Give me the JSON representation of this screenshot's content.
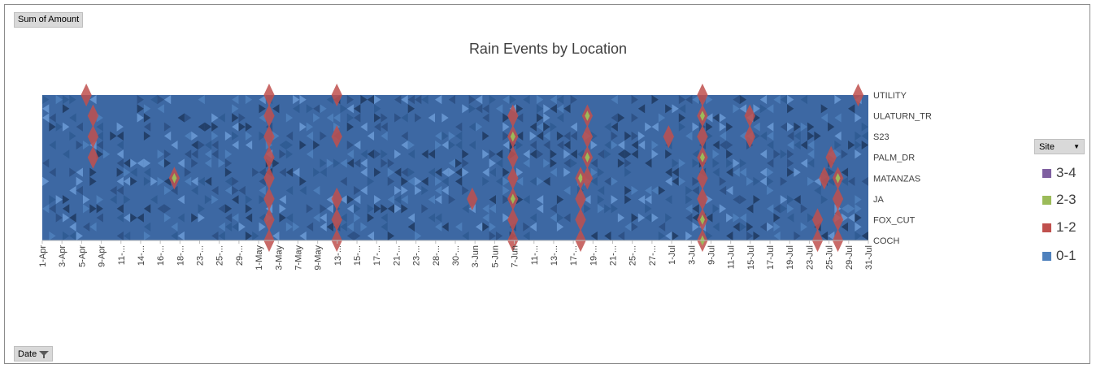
{
  "sum_label": "Sum of Amount",
  "date_label": "Date",
  "legend_field": "Site",
  "chart_data": {
    "type": "heatmap",
    "title": "Rain Events by Location",
    "sites": [
      "UTILITY",
      "ULATURN_TR",
      "S23",
      "PALM_DR",
      "MATANZAS",
      "JA",
      "FOX_CUT",
      "COCH"
    ],
    "x_tick_labels": [
      "1-Apr",
      "3-Apr",
      "5-Apr",
      "9-Apr",
      "11-...",
      "14-...",
      "16-...",
      "18-...",
      "23-...",
      "25-...",
      "29-...",
      "1-May",
      "3-May",
      "7-May",
      "9-May",
      "13-...",
      "15-...",
      "17-...",
      "21-...",
      "23-...",
      "28-...",
      "30-...",
      "3-Jun",
      "5-Jun",
      "7-Jun",
      "11-...",
      "13-...",
      "17-...",
      "19-...",
      "21-...",
      "25-...",
      "27-...",
      "1-Jul",
      "3-Jul",
      "9-Jul",
      "11-Jul",
      "15-Jul",
      "17-Jul",
      "19-Jul",
      "23-Jul",
      "25-Jul",
      "29-Jul",
      "31-Jul"
    ],
    "legend": [
      {
        "label": "3-4",
        "color": "#7f5fa0"
      },
      {
        "label": "2-3",
        "color": "#9bbb59"
      },
      {
        "label": "1-2",
        "color": "#c0504d"
      },
      {
        "label": "0-1",
        "color": "#4f81bd"
      }
    ],
    "legend_position": "right",
    "events": [
      {
        "date": "7-Apr",
        "site": "UTILITY",
        "value": 1.3
      },
      {
        "date": "8-Apr",
        "site": "ULATURN_TR",
        "value": 1.1
      },
      {
        "date": "8-Apr",
        "site": "PALM_DR",
        "value": 1.5
      },
      {
        "date": "8-Apr",
        "site": "S23",
        "value": 1.2
      },
      {
        "date": "20-Apr",
        "site": "MATANZAS",
        "value": 2.2
      },
      {
        "date": "4-May",
        "site": "UTILITY",
        "value": 1.4
      },
      {
        "date": "4-May",
        "site": "ULATURN_TR",
        "value": 1.6
      },
      {
        "date": "4-May",
        "site": "S23",
        "value": 1.5
      },
      {
        "date": "4-May",
        "site": "PALM_DR",
        "value": 1.3
      },
      {
        "date": "4-May",
        "site": "MATANZAS",
        "value": 1.7
      },
      {
        "date": "4-May",
        "site": "JA",
        "value": 1.6
      },
      {
        "date": "4-May",
        "site": "FOX_CUT",
        "value": 1.4
      },
      {
        "date": "4-May",
        "site": "COCH",
        "value": 1.2
      },
      {
        "date": "14-May",
        "site": "UTILITY",
        "value": 1.3
      },
      {
        "date": "14-May",
        "site": "S23",
        "value": 1.1
      },
      {
        "date": "14-May",
        "site": "JA",
        "value": 1.2
      },
      {
        "date": "14-May",
        "site": "FOX_CUT",
        "value": 1.5
      },
      {
        "date": "14-May",
        "site": "COCH",
        "value": 1.3
      },
      {
        "date": "3-Jun",
        "site": "JA",
        "value": 1.1
      },
      {
        "date": "9-Jun",
        "site": "ULATURN_TR",
        "value": 1.8
      },
      {
        "date": "9-Jun",
        "site": "S23",
        "value": 2.3
      },
      {
        "date": "9-Jun",
        "site": "PALM_DR",
        "value": 1.9
      },
      {
        "date": "9-Jun",
        "site": "MATANZAS",
        "value": 1.6
      },
      {
        "date": "9-Jun",
        "site": "JA",
        "value": 2.4
      },
      {
        "date": "9-Jun",
        "site": "FOX_CUT",
        "value": 1.8
      },
      {
        "date": "9-Jun",
        "site": "COCH",
        "value": 1.5
      },
      {
        "date": "19-Jun",
        "site": "MATANZAS",
        "value": 2.5
      },
      {
        "date": "19-Jun",
        "site": "JA",
        "value": 1.6
      },
      {
        "date": "19-Jun",
        "site": "FOX_CUT",
        "value": 1.3
      },
      {
        "date": "19-Jun",
        "site": "COCH",
        "value": 1.2
      },
      {
        "date": "20-Jun",
        "site": "ULATURN_TR",
        "value": 2.3
      },
      {
        "date": "20-Jun",
        "site": "S23",
        "value": 1.8
      },
      {
        "date": "20-Jun",
        "site": "PALM_DR",
        "value": 2.1
      },
      {
        "date": "20-Jun",
        "site": "MATANZAS",
        "value": 1.9
      },
      {
        "date": "2-Jul",
        "site": "S23",
        "value": 1.2
      },
      {
        "date": "7-Jul",
        "site": "UTILITY",
        "value": 1.5
      },
      {
        "date": "7-Jul",
        "site": "ULATURN_TR",
        "value": 2.2
      },
      {
        "date": "7-Jul",
        "site": "S23",
        "value": 1.6
      },
      {
        "date": "7-Jul",
        "site": "PALM_DR",
        "value": 2.4
      },
      {
        "date": "7-Jul",
        "site": "MATANZAS",
        "value": 1.3
      },
      {
        "date": "7-Jul",
        "site": "JA",
        "value": 1.7
      },
      {
        "date": "7-Jul",
        "site": "FOX_CUT",
        "value": 2.1
      },
      {
        "date": "7-Jul",
        "site": "COCH",
        "value": 2.6
      },
      {
        "date": "14-Jul",
        "site": "ULATURN_TR",
        "value": 1.2
      },
      {
        "date": "14-Jul",
        "site": "S23",
        "value": 1.1
      },
      {
        "date": "24-Jul",
        "site": "FOX_CUT",
        "value": 1.4
      },
      {
        "date": "24-Jul",
        "site": "COCH",
        "value": 1.3
      },
      {
        "date": "25-Jul",
        "site": "MATANZAS",
        "value": 1.6
      },
      {
        "date": "26-Jul",
        "site": "PALM_DR",
        "value": 1.4
      },
      {
        "date": "27-Jul",
        "site": "MATANZAS",
        "value": 2.3
      },
      {
        "date": "27-Jul",
        "site": "JA",
        "value": 1.2
      },
      {
        "date": "27-Jul",
        "site": "FOX_CUT",
        "value": 1.5
      },
      {
        "date": "27-Jul",
        "site": "COCH",
        "value": 1.3
      },
      {
        "date": "30-Jul",
        "site": "UTILITY",
        "value": 1.1
      }
    ]
  }
}
